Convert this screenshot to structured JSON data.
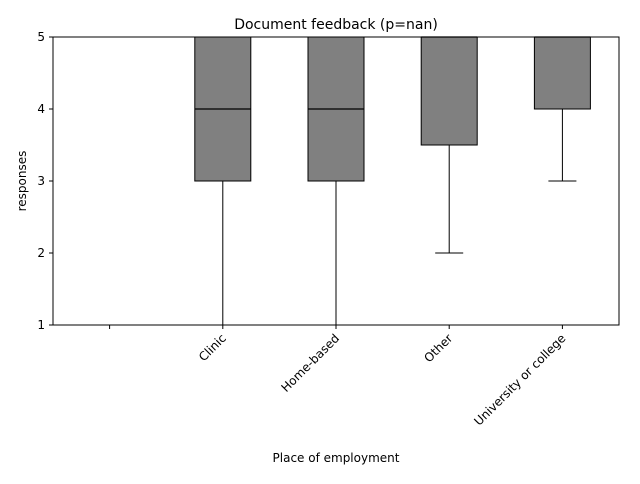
{
  "chart_data": {
    "type": "box",
    "title": "Document feedback (p=nan)",
    "xlabel": "Place of employment",
    "ylabel": "responses",
    "ylim": [
      1,
      5
    ],
    "yticks": [
      1,
      2,
      3,
      4,
      5
    ],
    "grid": false,
    "box_color": "#808080",
    "categories": [
      "",
      "Clinic",
      "Home-based",
      "Other",
      "University or college"
    ],
    "boxes": [
      null,
      {
        "whisker_low": 1,
        "q1": 3,
        "median": 4,
        "q3": 5,
        "whisker_high": 5
      },
      {
        "whisker_low": 1,
        "q1": 3,
        "median": 4,
        "q3": 5,
        "whisker_high": 5
      },
      {
        "whisker_low": 2,
        "q1": 3.5,
        "median": 5,
        "q3": 5,
        "whisker_high": 5
      },
      {
        "whisker_low": 3,
        "q1": 4,
        "median": 5,
        "q3": 5,
        "whisker_high": 5
      }
    ]
  }
}
